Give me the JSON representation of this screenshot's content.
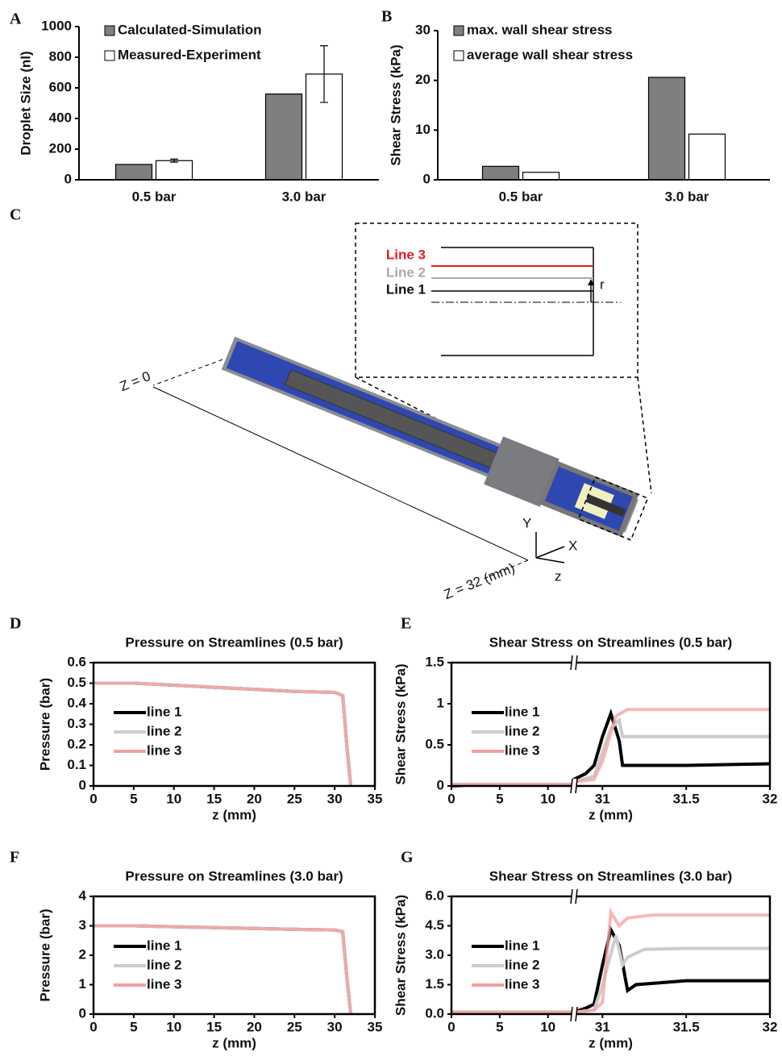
{
  "chart_data": [
    {
      "panel_label": "A",
      "type": "bar",
      "ylabel": "Droplet Size (nl)",
      "categories": [
        "0.5 bar",
        "3.0 bar"
      ],
      "series": [
        {
          "name": "Calculated-Simulation",
          "color": "#7f7f7f",
          "values": [
            100,
            560
          ]
        },
        {
          "name": "Measured-Experiment",
          "color": "#ffffff",
          "values": [
            125,
            690
          ],
          "errors": [
            10,
            185
          ]
        }
      ],
      "ylim": [
        0,
        1000
      ],
      "yticks": [
        0,
        200,
        400,
        600,
        800,
        1000
      ],
      "legend": "top-left"
    },
    {
      "panel_label": "B",
      "type": "bar",
      "ylabel": "Shear Stress (kPa)",
      "categories": [
        "0.5 bar",
        "3.0 bar"
      ],
      "series": [
        {
          "name": "max. wall shear stress",
          "color": "#7f7f7f",
          "values": [
            2.7,
            20.6
          ]
        },
        {
          "name": "average wall shear stress",
          "color": "#ffffff",
          "values": [
            1.5,
            9.2
          ]
        }
      ],
      "ylim": [
        0,
        30
      ],
      "yticks": [
        0,
        10,
        20,
        30
      ],
      "legend": "top-left"
    },
    {
      "panel_label": "D",
      "type": "line",
      "title": "Pressure on Streamlines (0.5 bar)",
      "xlabel": "z (mm)",
      "ylabel": "Pressure (bar)",
      "xlim": [
        0,
        35
      ],
      "xticks": [
        0,
        5,
        10,
        15,
        20,
        25,
        30,
        35
      ],
      "ylim": [
        0,
        0.6
      ],
      "yticks": [
        0,
        0.1,
        0.2,
        0.3,
        0.4,
        0.5,
        0.6
      ],
      "legend": "left",
      "series": [
        {
          "name": "line 1",
          "color": "#000000",
          "x": [
            0,
            5,
            10,
            15,
            20,
            25,
            30,
            31,
            31.5,
            32
          ],
          "values": [
            0.5,
            0.5,
            0.49,
            0.48,
            0.47,
            0.46,
            0.455,
            0.44,
            0.2,
            0
          ]
        },
        {
          "name": "line 2",
          "color": "#cccccc",
          "x": [
            0,
            5,
            10,
            15,
            20,
            25,
            30,
            31,
            31.5,
            32
          ],
          "values": [
            0.5,
            0.5,
            0.49,
            0.48,
            0.47,
            0.46,
            0.455,
            0.44,
            0.2,
            0
          ]
        },
        {
          "name": "line 3",
          "color": "#f4a0a0",
          "x": [
            0,
            5,
            10,
            15,
            20,
            25,
            30,
            31,
            31.5,
            32
          ],
          "values": [
            0.5,
            0.5,
            0.49,
            0.48,
            0.47,
            0.46,
            0.455,
            0.44,
            0.2,
            0
          ]
        }
      ]
    },
    {
      "panel_label": "E",
      "type": "line",
      "title": "Shear Stress on Streamlines (0.5 bar)",
      "xlabel": "z (mm)",
      "ylabel": "Shear Stress (kPa)",
      "xlim": [
        0,
        32
      ],
      "x_break": [
        12.7,
        30.83
      ],
      "xticks": [
        0,
        5,
        10,
        31,
        31.5,
        32
      ],
      "ylim": [
        0,
        1.5
      ],
      "yticks": [
        0,
        0.5,
        1,
        1.5
      ],
      "legend": "left",
      "series": [
        {
          "name": "line 1",
          "color": "#000000",
          "x": [
            0,
            3,
            12.7,
            30.83,
            30.9,
            30.95,
            31.0,
            31.05,
            31.1,
            31.12,
            31.3,
            31.5,
            32
          ],
          "values": [
            0,
            0.02,
            0.02,
            0.08,
            0.15,
            0.25,
            0.6,
            0.88,
            0.55,
            0.25,
            0.25,
            0.25,
            0.27
          ]
        },
        {
          "name": "line 2",
          "color": "#cccccc",
          "x": [
            0,
            3,
            12.7,
            30.83,
            30.95,
            31.05,
            31.1,
            31.12,
            31.3,
            31.5,
            32
          ],
          "values": [
            0.02,
            0.02,
            0.02,
            0.05,
            0.12,
            0.7,
            0.8,
            0.6,
            0.6,
            0.6,
            0.6
          ]
        },
        {
          "name": "line 3",
          "color": "#f4a0a0",
          "x": [
            0,
            3,
            12.7,
            30.83,
            30.95,
            31.0,
            31.08,
            31.15,
            31.5,
            32
          ],
          "values": [
            0.02,
            0.02,
            0.02,
            0.05,
            0.08,
            0.3,
            0.85,
            0.93,
            0.93,
            0.93
          ]
        }
      ]
    },
    {
      "panel_label": "F",
      "type": "line",
      "title": "Pressure on Streamlines (3.0 bar)",
      "xlabel": "z (mm)",
      "ylabel": "Pressure (bar)",
      "xlim": [
        0,
        35
      ],
      "xticks": [
        0,
        5,
        10,
        15,
        20,
        25,
        30,
        35
      ],
      "ylim": [
        0,
        4
      ],
      "yticks": [
        0,
        1,
        2,
        3,
        4
      ],
      "legend": "left",
      "series": [
        {
          "name": "line 1",
          "color": "#000000",
          "x": [
            0,
            5,
            10,
            15,
            20,
            25,
            30,
            31,
            31.5,
            32
          ],
          "values": [
            3,
            3,
            2.97,
            2.94,
            2.91,
            2.88,
            2.86,
            2.8,
            1.3,
            0
          ]
        },
        {
          "name": "line 2",
          "color": "#cccccc",
          "x": [
            0,
            5,
            10,
            15,
            20,
            25,
            30,
            31,
            31.5,
            32
          ],
          "values": [
            3,
            3,
            2.97,
            2.94,
            2.91,
            2.88,
            2.86,
            2.8,
            1.3,
            0
          ]
        },
        {
          "name": "line 3",
          "color": "#f4a0a0",
          "x": [
            0,
            5,
            10,
            15,
            20,
            25,
            30,
            31,
            31.5,
            32
          ],
          "values": [
            3,
            3,
            2.97,
            2.94,
            2.91,
            2.88,
            2.86,
            2.8,
            1.3,
            0
          ]
        }
      ]
    },
    {
      "panel_label": "G",
      "type": "line",
      "title": "Shear Stress on Streamlines (3.0 bar)",
      "xlabel": "z (mm)",
      "ylabel": "Shear Stress (kPa)",
      "xlim": [
        0,
        32
      ],
      "x_break": [
        12.7,
        30.83
      ],
      "xticks": [
        0,
        5,
        10,
        31,
        31.5,
        32
      ],
      "ylim": [
        0,
        6
      ],
      "yticks": [
        {
          "value": 0,
          "label": "0.0"
        },
        {
          "value": 1.5,
          "label": "1.5"
        },
        {
          "value": 3,
          "label": "3.0"
        },
        {
          "value": 4.5,
          "label": "4.5"
        },
        {
          "value": 6,
          "label": "6.0"
        }
      ],
      "legend": "left",
      "series": [
        {
          "name": "line 1",
          "color": "#000000",
          "x": [
            0,
            12.7,
            30.83,
            30.9,
            30.95,
            31.0,
            31.05,
            31.1,
            31.15,
            31.2,
            31.5,
            32
          ],
          "values": [
            0.1,
            0.1,
            0.1,
            0.3,
            0.5,
            2.5,
            4.3,
            3.5,
            1.2,
            1.5,
            1.7,
            1.7
          ]
        },
        {
          "name": "line 2",
          "color": "#cccccc",
          "x": [
            0,
            12.7,
            30.83,
            30.95,
            31.0,
            31.08,
            31.12,
            31.15,
            31.25,
            31.5,
            32
          ],
          "values": [
            0.1,
            0.1,
            0.1,
            0.2,
            1.5,
            4.0,
            2.5,
            2.9,
            3.3,
            3.35,
            3.35
          ]
        },
        {
          "name": "line 3",
          "color": "#f4a0a0",
          "x": [
            0,
            12.7,
            30.83,
            30.95,
            31.0,
            31.05,
            31.1,
            31.15,
            31.3,
            31.5,
            32
          ],
          "values": [
            0.1,
            0.1,
            0.1,
            0.2,
            0.6,
            5.2,
            4.5,
            4.9,
            5.05,
            5.05,
            5.05
          ]
        }
      ]
    }
  ],
  "diagram": {
    "panel_label": "C",
    "z0_label": "Z = 0",
    "z32_label": "Z = 32 (mm)",
    "axis_labels": [
      "Y",
      "X",
      "z"
    ],
    "inset": {
      "r_label": "r",
      "lines": [
        "Line 3",
        "Line 2",
        "Line 1"
      ]
    }
  }
}
